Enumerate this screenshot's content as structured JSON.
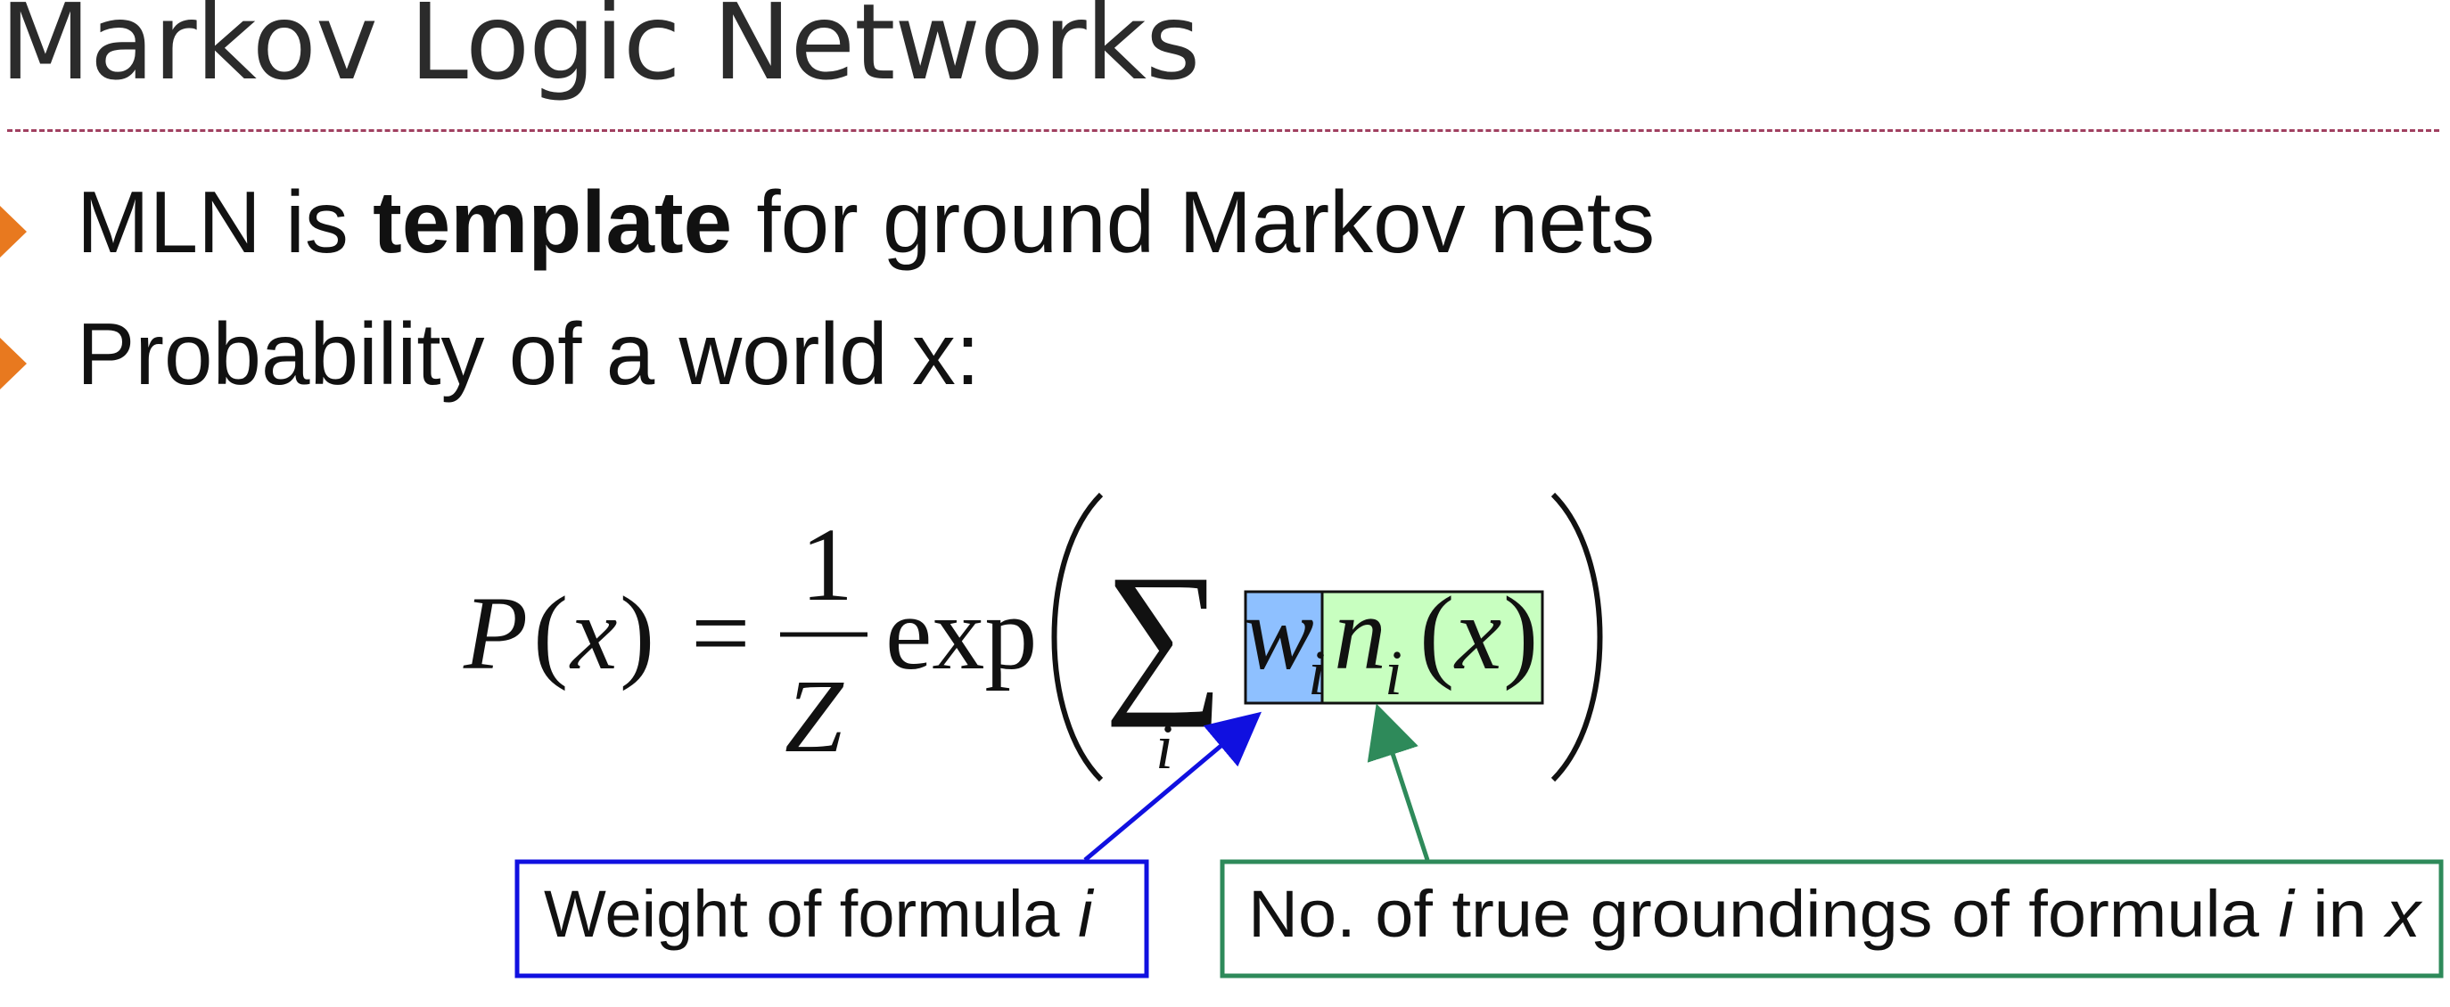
{
  "slide": {
    "title": "Markov Logic Networks",
    "bullets": [
      {
        "prefix": "MLN is ",
        "bold": "template",
        "suffix": " for ground Markov nets"
      },
      {
        "text": "Probability of a world x:"
      }
    ]
  },
  "formula": {
    "lhs_symbol": "P",
    "lhs_open": "(",
    "lhs_var": "x",
    "lhs_close": ")",
    "equals": "=",
    "numerator": "1",
    "denominator": "Z",
    "func": "exp",
    "sum_symbol": "∑",
    "sum_index": "i",
    "weight_symbol": "w",
    "weight_sub": "i",
    "count_symbol": "n",
    "count_sub": "i",
    "count_arg_open": "(",
    "count_arg_var": "x",
    "count_arg_close": ")"
  },
  "callouts": {
    "weight": {
      "text": "Weight of formula ",
      "var": "i"
    },
    "count": {
      "text_a": "No. of true groundings of formula ",
      "var_a": "i",
      "text_b": " in ",
      "var_b": "x"
    }
  },
  "colors": {
    "weight_highlight": "#8ec0ff",
    "count_highlight": "#c8ffc0",
    "weight_border": "#1010e0",
    "count_border": "#2e8a5a",
    "bullet_marker": "#e8791f",
    "title_divider": "#a04060"
  }
}
